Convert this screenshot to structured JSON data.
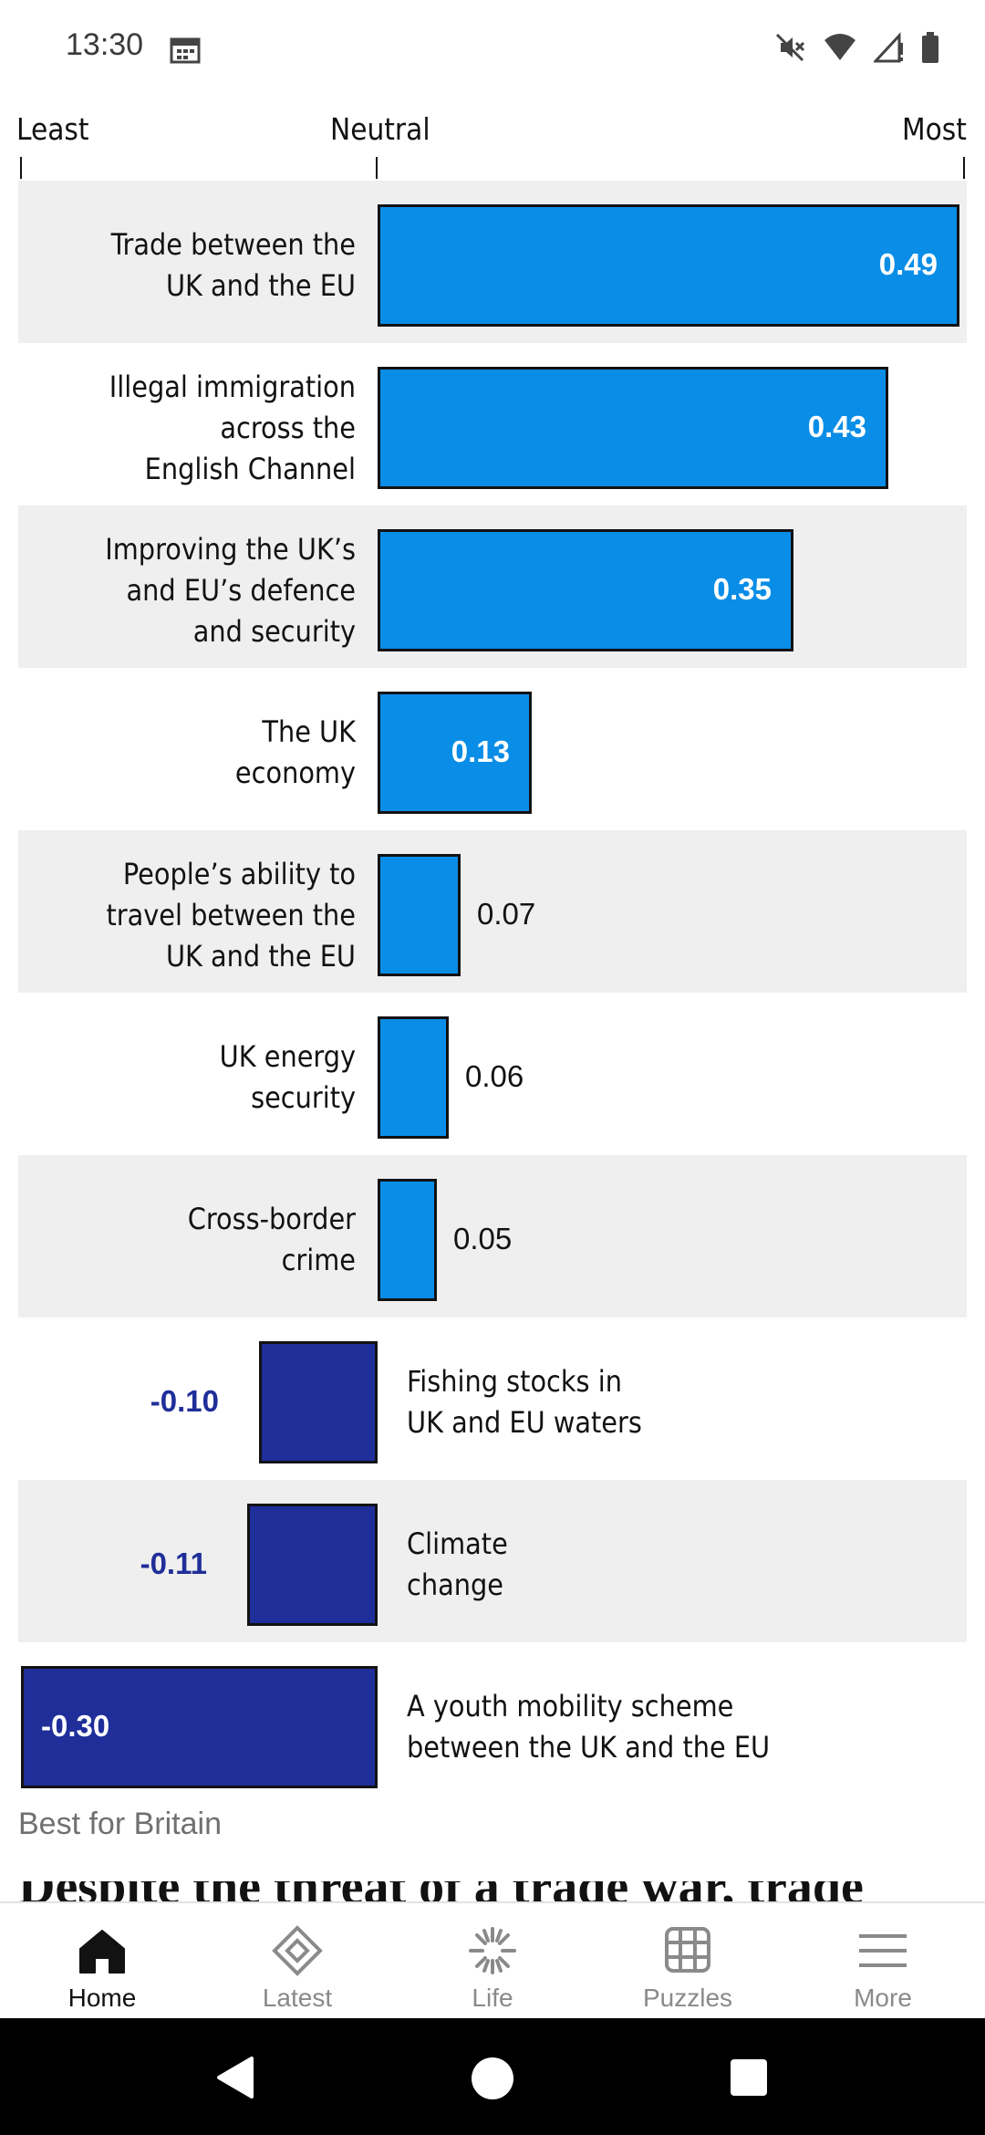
{
  "status_bar": {
    "time": "13:30"
  },
  "chart_data": {
    "type": "bar",
    "orientation": "horizontal",
    "axis_labels": {
      "left": "Least",
      "center": "Neutral",
      "right": "Most"
    },
    "categories": [
      "Trade between the UK and the EU",
      "Illegal immigration across the English Channel",
      "Improving the UK’s and EU’s defence and security",
      "The UK economy",
      "People’s ability to travel between the UK and the EU",
      "UK energy security",
      "Cross-border crime",
      "Fishing stocks in UK and EU waters",
      "Climate change",
      "A youth mobility scheme between the UK and the EU"
    ],
    "label_lines": [
      [
        "Trade between the",
        "UK and the EU"
      ],
      [
        "Illegal immigration",
        "across the",
        "English Channel"
      ],
      [
        "Improving the UK’s",
        "and EU’s defence",
        "and security"
      ],
      [
        "The UK",
        "economy"
      ],
      [
        "People’s ability to",
        "travel between the",
        "UK and the EU"
      ],
      [
        "UK energy",
        "security"
      ],
      [
        "Cross-border",
        "crime"
      ],
      [
        "Fishing stocks in",
        "UK and EU waters"
      ],
      [
        "Climate",
        "change"
      ],
      [
        "A youth mobility scheme",
        "between the UK and the EU"
      ]
    ],
    "values": [
      0.49,
      0.43,
      0.35,
      0.13,
      0.07,
      0.06,
      0.05,
      -0.1,
      -0.11,
      -0.3
    ],
    "value_labels": [
      "0.49",
      "0.43",
      "0.35",
      "0.13",
      "0.07",
      "0.06",
      "0.05",
      "-0.10",
      "-0.11",
      "-0.30"
    ],
    "xlim": [
      -0.3,
      0.5
    ],
    "colors": {
      "positive": "#0a8de6",
      "negative": "#1f2e99",
      "row_alt": "#efefef"
    }
  },
  "source": "Best for Britain",
  "next_heading_peek": "Despite the threat of a trade war, trade",
  "bottom_nav": {
    "items": [
      {
        "label": "Home",
        "icon": "home-icon",
        "active": true
      },
      {
        "label": "Latest",
        "icon": "diamond-icon",
        "active": false
      },
      {
        "label": "Life",
        "icon": "sunburst-icon",
        "active": false
      },
      {
        "label": "Puzzles",
        "icon": "grid-icon",
        "active": false
      },
      {
        "label": "More",
        "icon": "menu-icon",
        "active": false
      }
    ]
  }
}
